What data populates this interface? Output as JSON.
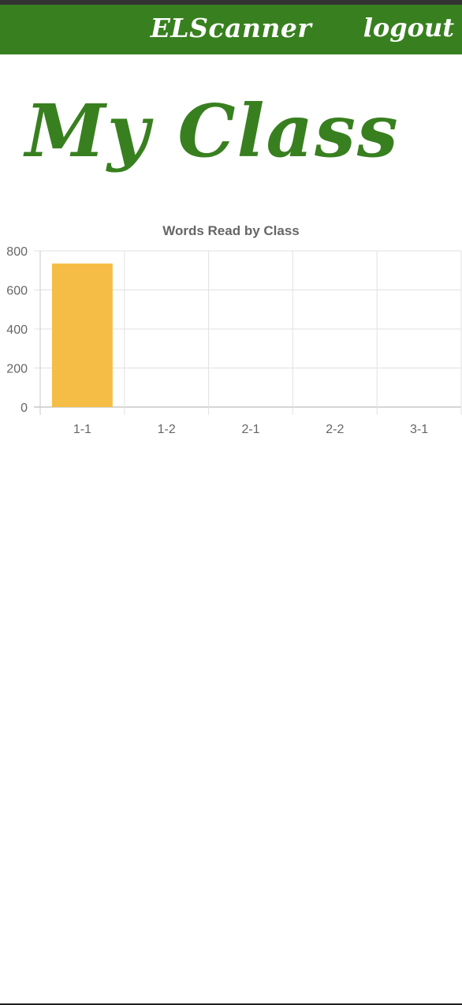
{
  "header": {
    "brand": "ELScanner",
    "logout_label": "logout"
  },
  "page": {
    "title": "My Class"
  },
  "colors": {
    "navbar": "#38801f",
    "title": "#38801f",
    "bar": "#f5bd45"
  },
  "chart_data": {
    "type": "bar",
    "title": "Words Read by Class",
    "categories": [
      "1-1",
      "1-2",
      "2-1",
      "2-2",
      "3-1"
    ],
    "values": [
      735,
      0,
      0,
      0,
      0
    ],
    "ylim": [
      0,
      800
    ],
    "yticks": [
      0,
      200,
      400,
      600,
      800
    ],
    "grid": true,
    "xlabel": "",
    "ylabel": ""
  }
}
